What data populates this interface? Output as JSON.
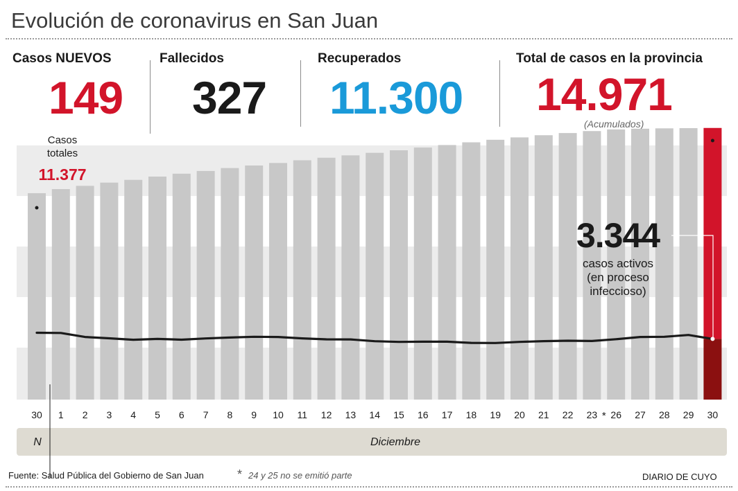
{
  "title": "Evolución de coronavirus en San Juan",
  "stats": [
    {
      "label": "Casos NUEVOS",
      "value": "149",
      "color": "#d2142a"
    },
    {
      "label": "Fallecidos",
      "value": "327",
      "color": "#1a1a1a"
    },
    {
      "label": "Recuperados",
      "value": "11.300",
      "color": "#1a9ad9"
    },
    {
      "label": "Total de casos en la provincia",
      "value": "14.971",
      "color": "#d2142a",
      "note": "(Acumulados)"
    }
  ],
  "chart_data": {
    "type": "bar",
    "categories": [
      "30",
      "1",
      "2",
      "3",
      "4",
      "5",
      "6",
      "7",
      "8",
      "9",
      "10",
      "11",
      "12",
      "13",
      "14",
      "15",
      "16",
      "17",
      "18",
      "19",
      "20",
      "21",
      "22",
      "23",
      "26",
      "27",
      "28",
      "29",
      "30"
    ],
    "series": [
      {
        "values": [
          11377,
          11600,
          11780,
          11960,
          12110,
          12290,
          12450,
          12600,
          12760,
          12900,
          13040,
          13190,
          13330,
          13460,
          13600,
          13740,
          13890,
          14030,
          14180,
          14320,
          14450,
          14570,
          14690,
          14800,
          14890,
          14930,
          14950,
          14960,
          14971
        ]
      },
      {
        "values": [
          3685,
          3672,
          3452,
          3376,
          3296,
          3345,
          3302,
          3371,
          3420,
          3460,
          3451,
          3375,
          3320,
          3318,
          3216,
          3180,
          3191,
          3190,
          3125,
          3120,
          3180,
          3220,
          3246,
          3230,
          3330,
          3450,
          3460,
          3560,
          3344
        ]
      }
    ],
    "ylim": [
      0,
      15000
    ],
    "months": [
      {
        "label": "N",
        "span": [
          0,
          0
        ]
      },
      {
        "label": "Diciembre",
        "span": [
          1,
          28
        ]
      }
    ],
    "annotations": {
      "first_label": "Casos\ntotales",
      "first_value": "11.377",
      "active_value": "3.344",
      "active_text": "casos activos\n(en proceso\ninfeccioso)",
      "gap_marker": "*"
    },
    "colors": {
      "bar": "#c8c8c8",
      "bar_last": "#d2142a",
      "bar_last_dark": "#8b1010",
      "line": "#1a1a1a",
      "band": "#ececec",
      "month_strip": "#dedbd2"
    },
    "grid": false
  },
  "footer": {
    "source": "Fuente: Salud Pública del Gobierno de San Juan",
    "note_mark": "*",
    "note": "24 y 25 no se emitió parte",
    "brand": "DIARIO DE CUYO"
  }
}
